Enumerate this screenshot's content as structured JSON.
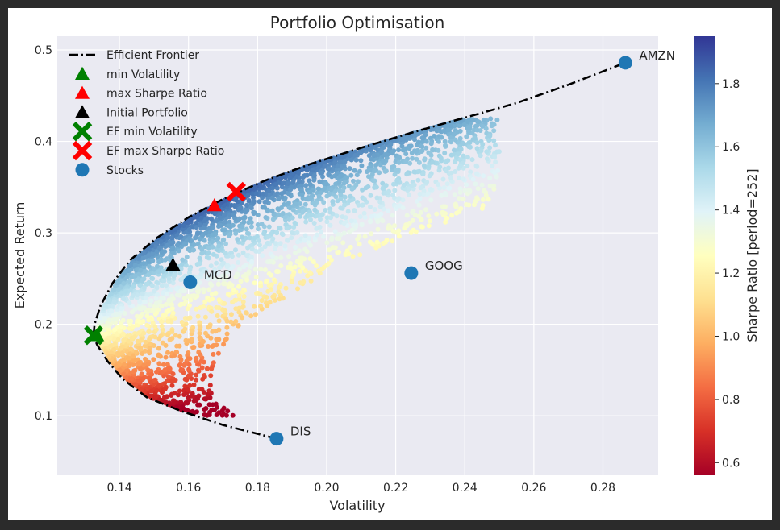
{
  "chart_data": {
    "type": "scatter",
    "title": "Portfolio Optimisation",
    "xlabel": "Volatility",
    "ylabel": "Expected Return",
    "xlim": [
      0.122,
      0.296
    ],
    "ylim": [
      0.035,
      0.515
    ],
    "xticks": [
      "0.14",
      "0.16",
      "0.18",
      "0.20",
      "0.22",
      "0.24",
      "0.26",
      "0.28"
    ],
    "yticks": [
      "0.1",
      "0.2",
      "0.3",
      "0.4",
      "0.5"
    ],
    "grid": true,
    "legend_position": "top-left",
    "colorbar": {
      "label": "Sharpe Ratio [period=252]",
      "range": [
        0.56,
        1.95
      ],
      "ticks": [
        "0.6",
        "0.8",
        "1.0",
        "1.2",
        "1.4",
        "1.6",
        "1.8"
      ],
      "colormap": "RdYlBu"
    },
    "efficient_frontier": {
      "name": "Efficient Frontier",
      "points": [
        [
          0.1855,
          0.075
        ],
        [
          0.17,
          0.09
        ],
        [
          0.158,
          0.105
        ],
        [
          0.148,
          0.12
        ],
        [
          0.141,
          0.14
        ],
        [
          0.1365,
          0.16
        ],
        [
          0.1335,
          0.178
        ],
        [
          0.1325,
          0.188
        ],
        [
          0.1328,
          0.2
        ],
        [
          0.1345,
          0.22
        ],
        [
          0.138,
          0.245
        ],
        [
          0.143,
          0.27
        ],
        [
          0.151,
          0.295
        ],
        [
          0.16,
          0.317
        ],
        [
          0.17,
          0.337
        ],
        [
          0.182,
          0.357
        ],
        [
          0.195,
          0.375
        ],
        [
          0.21,
          0.393
        ],
        [
          0.225,
          0.41
        ],
        [
          0.24,
          0.426
        ],
        [
          0.255,
          0.442
        ],
        [
          0.27,
          0.462
        ],
        [
          0.2865,
          0.486
        ]
      ]
    },
    "markers": [
      {
        "name": "min Volatility",
        "x": 0.1335,
        "y": 0.188,
        "shape": "triangle",
        "color": "#008000"
      },
      {
        "name": "max Sharpe Ratio",
        "x": 0.1675,
        "y": 0.33,
        "shape": "triangle",
        "color": "#ff0000"
      },
      {
        "name": "Initial Portfolio",
        "x": 0.1555,
        "y": 0.265,
        "shape": "triangle",
        "color": "#000000"
      },
      {
        "name": "EF min Volatility",
        "x": 0.1325,
        "y": 0.188,
        "shape": "x",
        "color": "#008000"
      },
      {
        "name": "EF max Sharpe Ratio",
        "x": 0.1738,
        "y": 0.345,
        "shape": "x",
        "color": "#ff0000"
      }
    ],
    "stocks": {
      "name": "Stocks",
      "color": "#1f77b4",
      "points": [
        {
          "label": "AMZN",
          "x": 0.2865,
          "y": 0.486
        },
        {
          "label": "GOOG",
          "x": 0.2245,
          "y": 0.256
        },
        {
          "label": "MCD",
          "x": 0.1605,
          "y": 0.246
        },
        {
          "label": "DIS",
          "x": 0.1855,
          "y": 0.075
        }
      ]
    },
    "legend": [
      {
        "label": "Efficient Frontier",
        "symbol": "dashdot-line"
      },
      {
        "label": "min Volatility",
        "symbol": "triangle-green"
      },
      {
        "label": "max Sharpe Ratio",
        "symbol": "triangle-red"
      },
      {
        "label": "Initial Portfolio",
        "symbol": "triangle-black"
      },
      {
        "label": "EF min Volatility",
        "symbol": "x-green"
      },
      {
        "label": "EF max Sharpe Ratio",
        "symbol": "x-red"
      },
      {
        "label": "Stocks",
        "symbol": "circle-blue"
      }
    ]
  }
}
